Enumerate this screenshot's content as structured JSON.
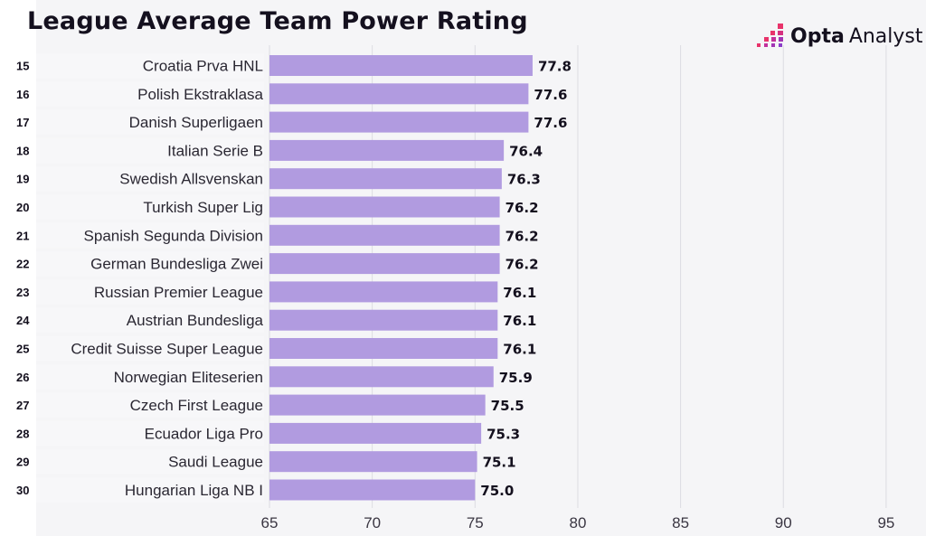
{
  "header": {
    "title": "League Average Team Power Rating",
    "logo": {
      "icon": "opta-pixel-logo-icon",
      "brand": "Opta",
      "product": "Analyst"
    }
  },
  "colors": {
    "bar": "#b19be0",
    "background": "#f5f5f7",
    "text": "#14101e",
    "grid": "#dcdce2",
    "logo_gradient": [
      "#e8336b",
      "#c2309c",
      "#8a3cc8"
    ]
  },
  "chart_data": {
    "type": "bar",
    "orientation": "horizontal",
    "title": "League Average Team Power Rating",
    "xlabel": "",
    "ylabel": "",
    "xlim": [
      65,
      97
    ],
    "xticks": [
      65,
      70,
      75,
      80,
      85,
      90,
      95
    ],
    "grid": true,
    "ranks": [
      15,
      16,
      17,
      18,
      19,
      20,
      21,
      22,
      23,
      24,
      25,
      26,
      27,
      28,
      29,
      30
    ],
    "categories": [
      "Croatia Prva HNL",
      "Polish Ekstraklasa",
      "Danish Superligaen",
      "Italian Serie B",
      "Swedish Allsvenskan",
      "Turkish Super Lig",
      "Spanish Segunda Division",
      "German Bundesliga Zwei",
      "Russian Premier League",
      "Austrian Bundesliga",
      "Credit Suisse Super League",
      "Norwegian Eliteserien",
      "Czech First League",
      "Ecuador Liga Pro",
      "Saudi League",
      "Hungarian Liga NB I"
    ],
    "values": [
      77.8,
      77.6,
      77.6,
      76.4,
      76.3,
      76.2,
      76.2,
      76.2,
      76.1,
      76.1,
      76.1,
      75.9,
      75.5,
      75.3,
      75.1,
      75.0
    ],
    "value_labels": [
      "77.8",
      "77.6",
      "77.6",
      "76.4",
      "76.3",
      "76.2",
      "76.2",
      "76.2",
      "76.1",
      "76.1",
      "76.1",
      "75.9",
      "75.5",
      "75.3",
      "75.1",
      "75.0"
    ]
  }
}
